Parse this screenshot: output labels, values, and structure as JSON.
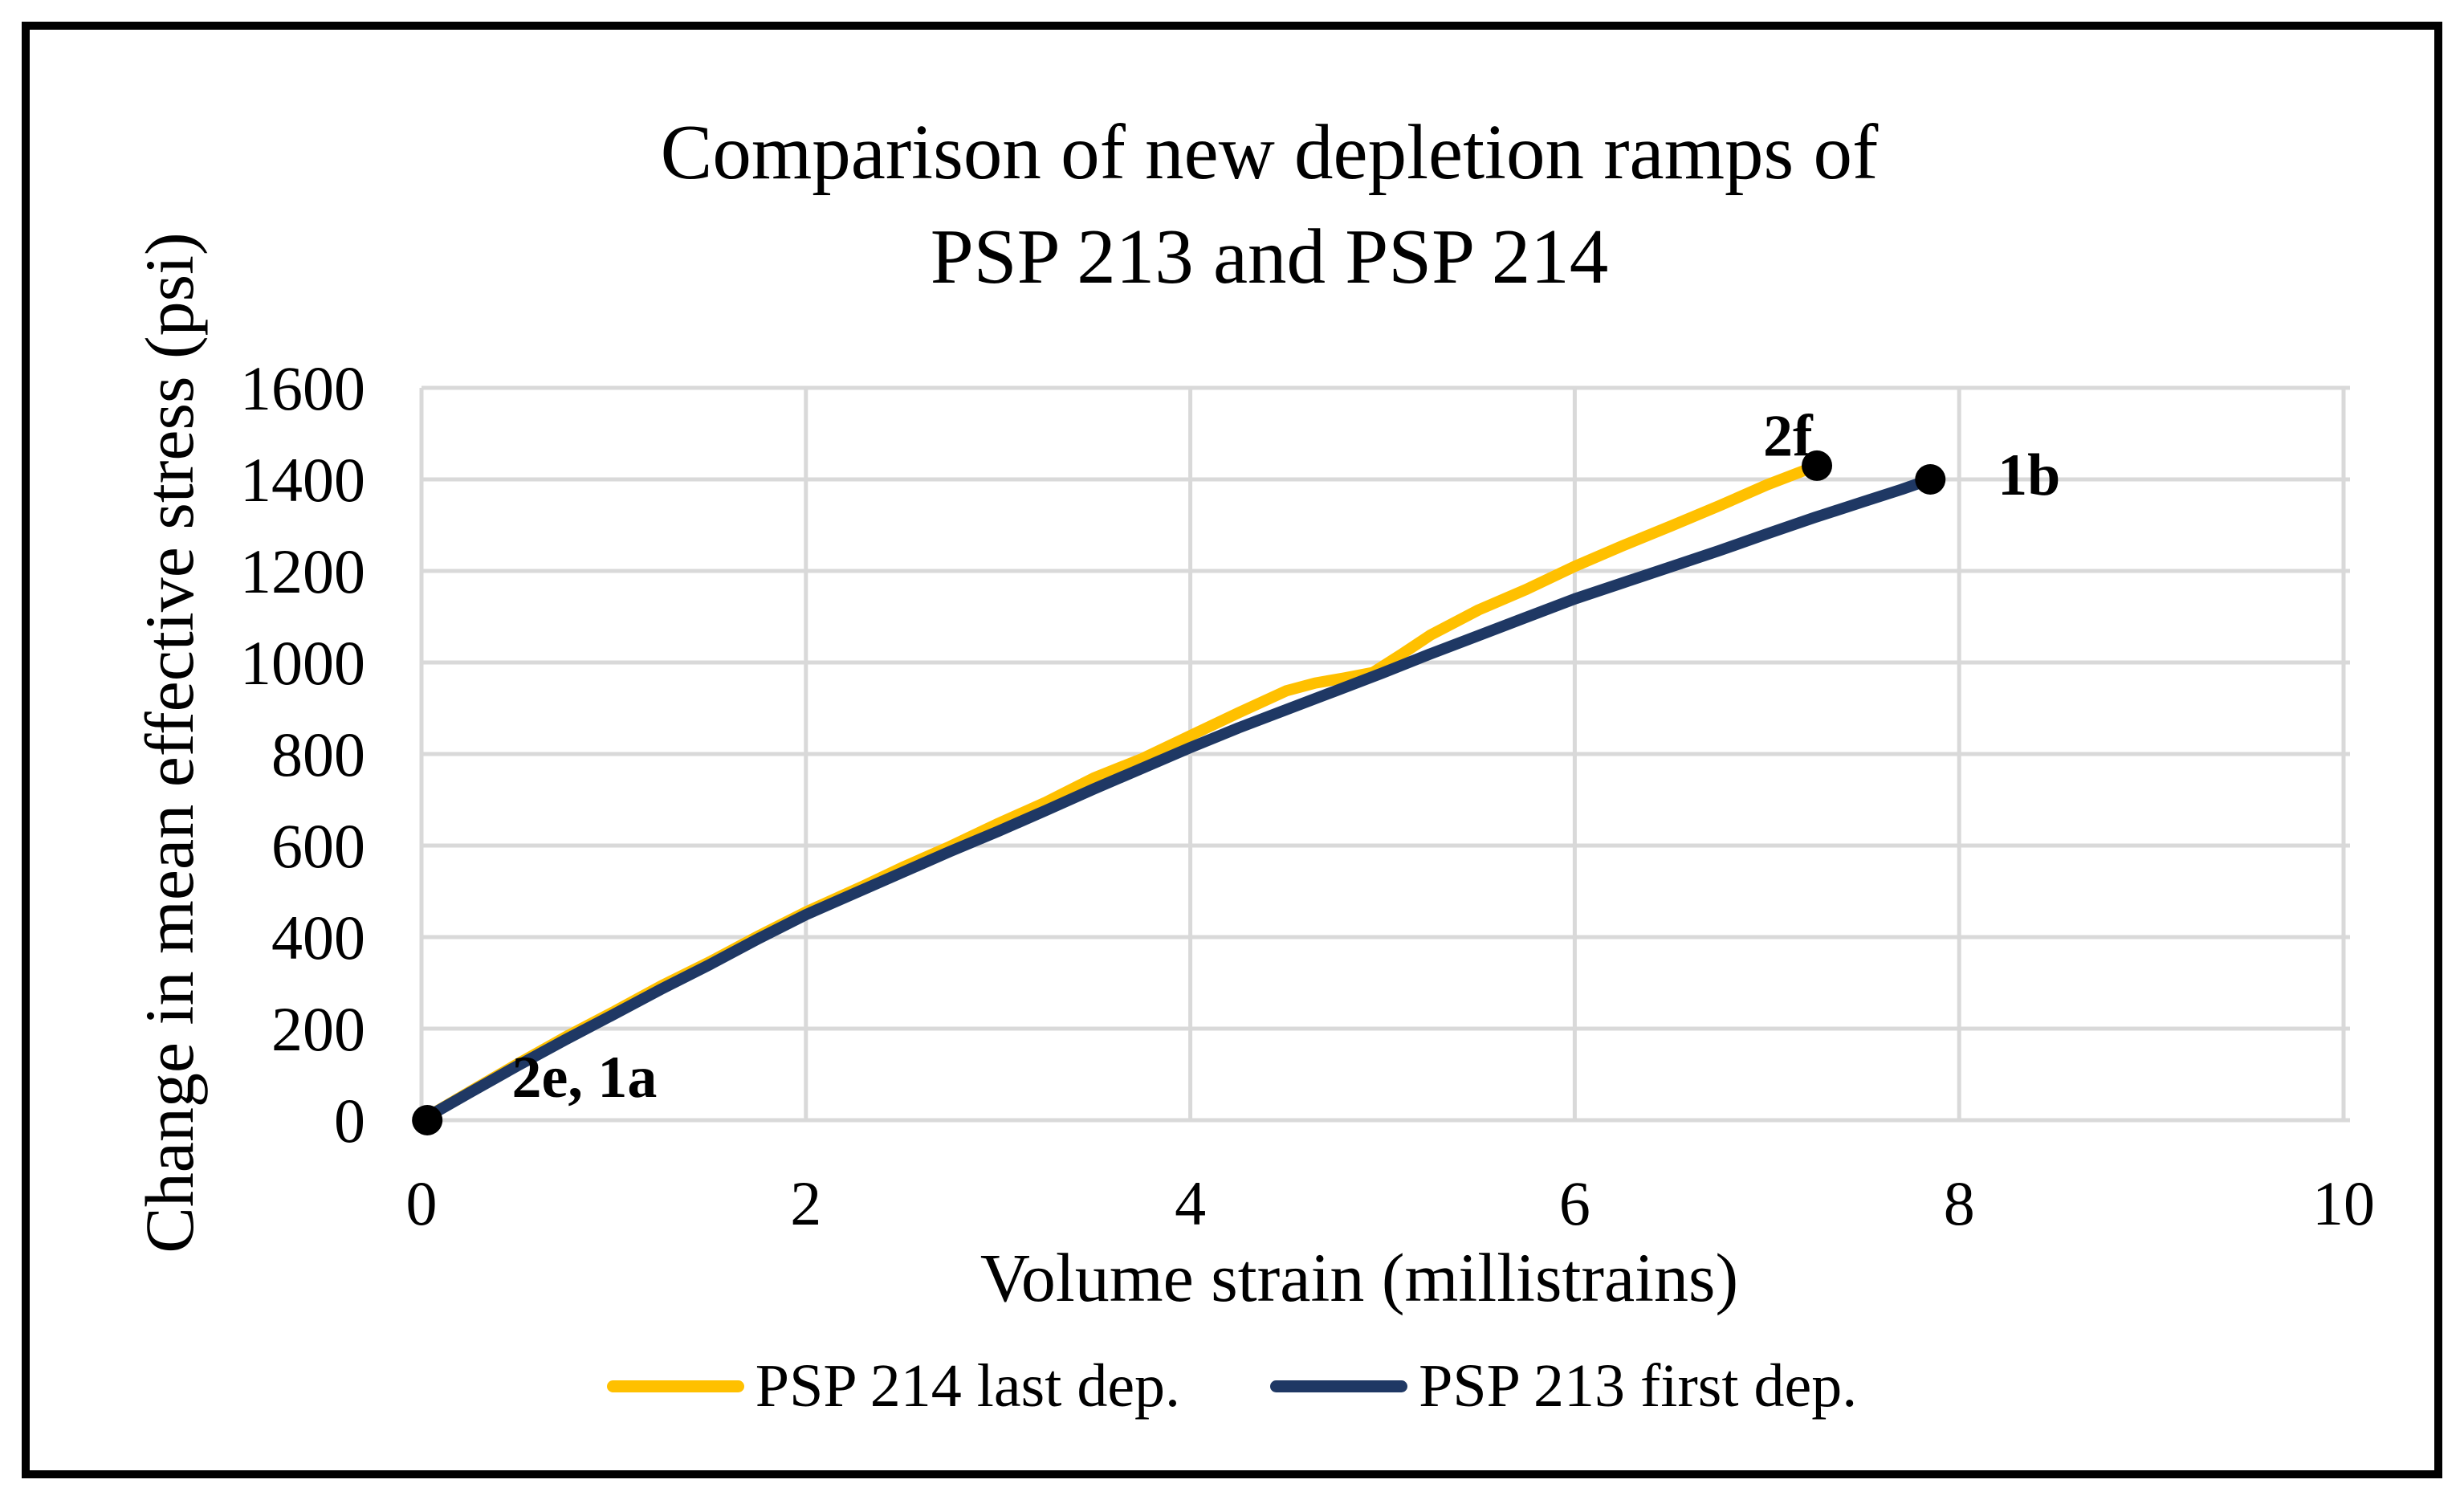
{
  "figure": {
    "background": "#FFFFFF",
    "border_color": "#000000"
  },
  "chart_data": {
    "type": "line",
    "title": "Comparison of new depletion ramps of PSP 213 and PSP 214",
    "title_lines": [
      "Comparison of new depletion ramps of",
      "PSP 213 and PSP 214"
    ],
    "xlabel": "Volume strain (millistrains)",
    "ylabel": "Change in mean effective stress (psi)",
    "xlim": [
      0,
      10
    ],
    "ylim": [
      0,
      1600
    ],
    "grid": true,
    "gridline_color": "#D9D9D9",
    "legend_position": "bottom",
    "x_ticks": [
      {
        "value": 0,
        "label": "0"
      },
      {
        "value": 2,
        "label": "2"
      },
      {
        "value": 4,
        "label": "4"
      },
      {
        "value": 6,
        "label": "6"
      },
      {
        "value": 8,
        "label": "8"
      },
      {
        "value": 10,
        "label": "10"
      }
    ],
    "y_ticks": [
      {
        "value": 0,
        "label": "0"
      },
      {
        "value": 200,
        "label": "200"
      },
      {
        "value": 400,
        "label": "400"
      },
      {
        "value": 600,
        "label": "600"
      },
      {
        "value": 800,
        "label": "800"
      },
      {
        "value": 1000,
        "label": "1000"
      },
      {
        "value": 1200,
        "label": "1200"
      },
      {
        "value": 1400,
        "label": "1400"
      },
      {
        "value": 1600,
        "label": "1600"
      }
    ],
    "series": [
      {
        "name": "PSP 214 last dep.",
        "color": "#FFC000",
        "points": [
          [
            0,
            0
          ],
          [
            0.25,
            62
          ],
          [
            0.5,
            123
          ],
          [
            0.75,
            182
          ],
          [
            1,
            237
          ],
          [
            1.25,
            294
          ],
          [
            1.5,
            346
          ],
          [
            1.75,
            402
          ],
          [
            2,
            455
          ],
          [
            2.3,
            512
          ],
          [
            2.5,
            552
          ],
          [
            2.75,
            598
          ],
          [
            3,
            648
          ],
          [
            3.25,
            695
          ],
          [
            3.5,
            748
          ],
          [
            3.75,
            790
          ],
          [
            4,
            840
          ],
          [
            4.25,
            890
          ],
          [
            4.5,
            938
          ],
          [
            4.65,
            955
          ],
          [
            4.8,
            966
          ],
          [
            4.95,
            978
          ],
          [
            5.1,
            1018
          ],
          [
            5.25,
            1060
          ],
          [
            5.5,
            1115
          ],
          [
            5.75,
            1160
          ],
          [
            6,
            1210
          ],
          [
            6.25,
            1255
          ],
          [
            6.5,
            1298
          ],
          [
            6.75,
            1342
          ],
          [
            7,
            1388
          ],
          [
            7.26,
            1430
          ]
        ]
      },
      {
        "name": "PSP 213 first dep.",
        "color": "#1F3864",
        "points": [
          [
            0,
            0
          ],
          [
            0.25,
            60
          ],
          [
            0.5,
            119
          ],
          [
            0.75,
            176
          ],
          [
            1,
            231
          ],
          [
            1.25,
            287
          ],
          [
            1.5,
            340
          ],
          [
            1.75,
            396
          ],
          [
            2,
            449
          ],
          [
            2.25,
            495
          ],
          [
            2.5,
            541
          ],
          [
            2.75,
            587
          ],
          [
            3,
            631
          ],
          [
            3.25,
            677
          ],
          [
            3.5,
            724
          ],
          [
            3.75,
            769
          ],
          [
            4,
            814
          ],
          [
            4.25,
            857
          ],
          [
            4.5,
            897
          ],
          [
            4.75,
            937
          ],
          [
            5,
            977
          ],
          [
            5.25,
            1019
          ],
          [
            5.5,
            1059
          ],
          [
            5.75,
            1099
          ],
          [
            6,
            1139
          ],
          [
            6.25,
            1174
          ],
          [
            6.5,
            1209
          ],
          [
            6.75,
            1244
          ],
          [
            7,
            1281
          ],
          [
            7.25,
            1317
          ],
          [
            7.5,
            1351
          ],
          [
            7.7,
            1378
          ],
          [
            7.85,
            1400
          ]
        ]
      }
    ],
    "markers": [
      {
        "x": 0.03,
        "y": 0,
        "point_label": ""
      },
      {
        "x": 7.26,
        "y": 1430,
        "point_label": "2f"
      },
      {
        "x": 7.85,
        "y": 1400,
        "point_label": "1b"
      }
    ],
    "marker_color": "#000000",
    "annotations": [
      {
        "text": "2e, 1a",
        "x": 0.47,
        "y": 51
      },
      {
        "text": "2f",
        "x": 6.98,
        "y": 1452
      },
      {
        "text": "1b",
        "x": 8.2,
        "y": 1367
      }
    ]
  }
}
